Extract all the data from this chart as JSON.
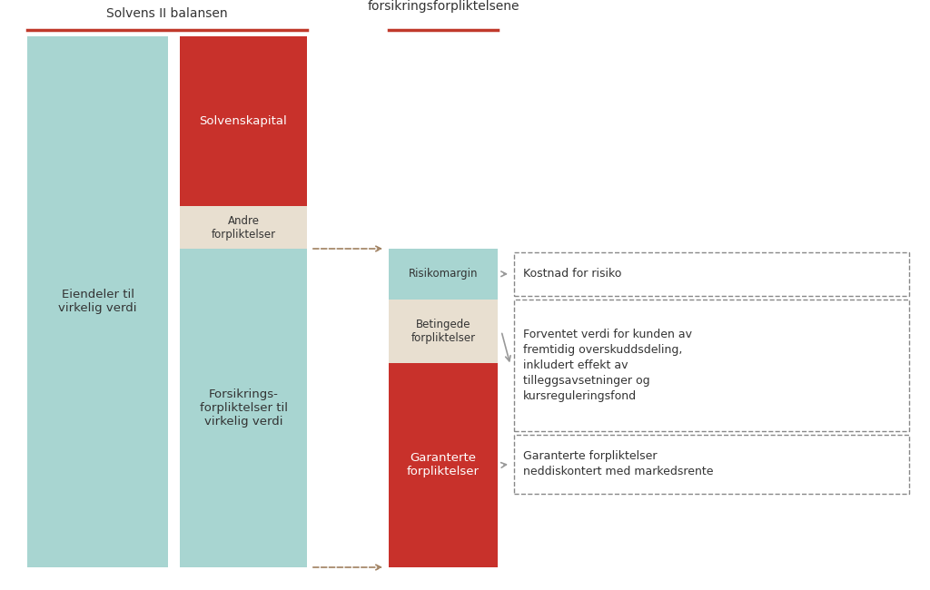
{
  "bg_color": "#ffffff",
  "teal_color": "#a8d5d1",
  "red_color": "#c8312b",
  "beige_color": "#e8dfd0",
  "dashed_color": "#999999",
  "arrow_color": "#999999",
  "dark_arrow_color": "#a08060",
  "text_dark": "#333333",
  "text_white": "#ffffff",
  "underline_red": "#c0392b",
  "label_solvens": "Solvens II balansen",
  "label_marked": "Markedsverdi av\nforsikringsforpliktelsene",
  "text_col1": "Eiendeler til\nvirkelig verdi",
  "text_col2_red": "Solvenskapital",
  "text_col2_beige": "Andre\nforpliktelser",
  "text_col2_teal": "Forsikrings-\nforpliktelser til\nvirkelig verdi",
  "text_col3_teal": "Risikomargin",
  "text_col3_beige": "Betingede\nforpliktelser",
  "text_col3_red": "Garanterte\nforpliktelser",
  "box1_text": "Kostnad for risiko",
  "box2_text": "Forventet verdi for kunden av\nfremtidig overskuddsdeling,\ninkludert effekt av\ntilleggsavsetninger og\nkursreguleringsfond",
  "box3_text": "Garanterte forpliktelser\nneddiskontert med markedsrente"
}
